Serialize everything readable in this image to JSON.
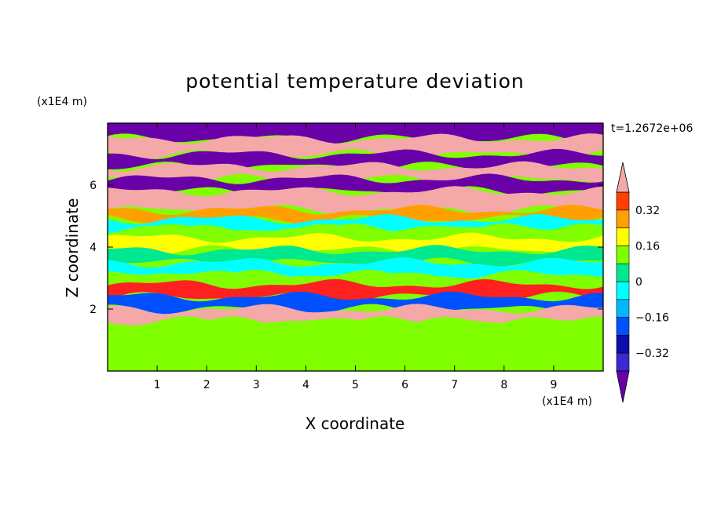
{
  "chart_data": {
    "type": "heatmap",
    "title": "potential temperature deviation",
    "xlabel": "X coordinate",
    "ylabel": "Z coordinate",
    "x_unit": "(x1E4 m)",
    "y_unit": "(x1E4 m)",
    "time_label": "t=1.2672e+06",
    "xlim": [
      0,
      10
    ],
    "ylim": [
      0,
      8
    ],
    "x_ticks": [
      1,
      2,
      3,
      4,
      5,
      6,
      7,
      8,
      9
    ],
    "y_ticks": [
      2,
      4,
      6
    ],
    "colorbar": {
      "labels": [
        "0.32",
        "0.16",
        "0",
        "−0.16",
        "−0.32"
      ],
      "label_values": [
        0.32,
        0.16,
        0,
        -0.16,
        -0.32
      ],
      "levels": [
        -0.4,
        -0.32,
        -0.24,
        -0.16,
        -0.08,
        0,
        0.08,
        0.16,
        0.24,
        0.32,
        0.4
      ],
      "colors": [
        "#6a00a8",
        "#3a2ad0",
        "#0a10a8",
        "#0050ff",
        "#00b8ff",
        "#00ffff",
        "#00e890",
        "#80ff00",
        "#ffff00",
        "#ffa000",
        "#ff4000",
        "#ff2020",
        "#f4a8a8"
      ],
      "extend": "both"
    },
    "bands": [
      {
        "z_from": 7.5,
        "z_to": 8.0,
        "level": 0
      },
      {
        "z_from": 7.0,
        "z_to": 7.5,
        "level": 12
      },
      {
        "z_from": 6.6,
        "z_to": 7.0,
        "level": 0
      },
      {
        "z_from": 6.2,
        "z_to": 6.6,
        "level": 12
      },
      {
        "z_from": 5.8,
        "z_to": 6.2,
        "level": 0
      },
      {
        "z_from": 5.2,
        "z_to": 5.8,
        "level": 12
      },
      {
        "z_from": 4.9,
        "z_to": 5.2,
        "level": 9
      },
      {
        "z_from": 4.6,
        "z_to": 4.9,
        "level": 5
      },
      {
        "z_from": 4.3,
        "z_to": 4.6,
        "level": 7
      },
      {
        "z_from": 3.9,
        "z_to": 4.3,
        "level": 8
      },
      {
        "z_from": 3.5,
        "z_to": 3.9,
        "level": 6
      },
      {
        "z_from": 3.1,
        "z_to": 3.5,
        "level": 5
      },
      {
        "z_from": 2.8,
        "z_to": 3.1,
        "level": 7
      },
      {
        "z_from": 2.4,
        "z_to": 2.8,
        "level": 11
      },
      {
        "z_from": 2.0,
        "z_to": 2.4,
        "level": 3
      },
      {
        "z_from": 1.6,
        "z_to": 2.0,
        "level": 12
      },
      {
        "z_from": 0.0,
        "z_to": 1.6,
        "level": 7
      }
    ]
  }
}
